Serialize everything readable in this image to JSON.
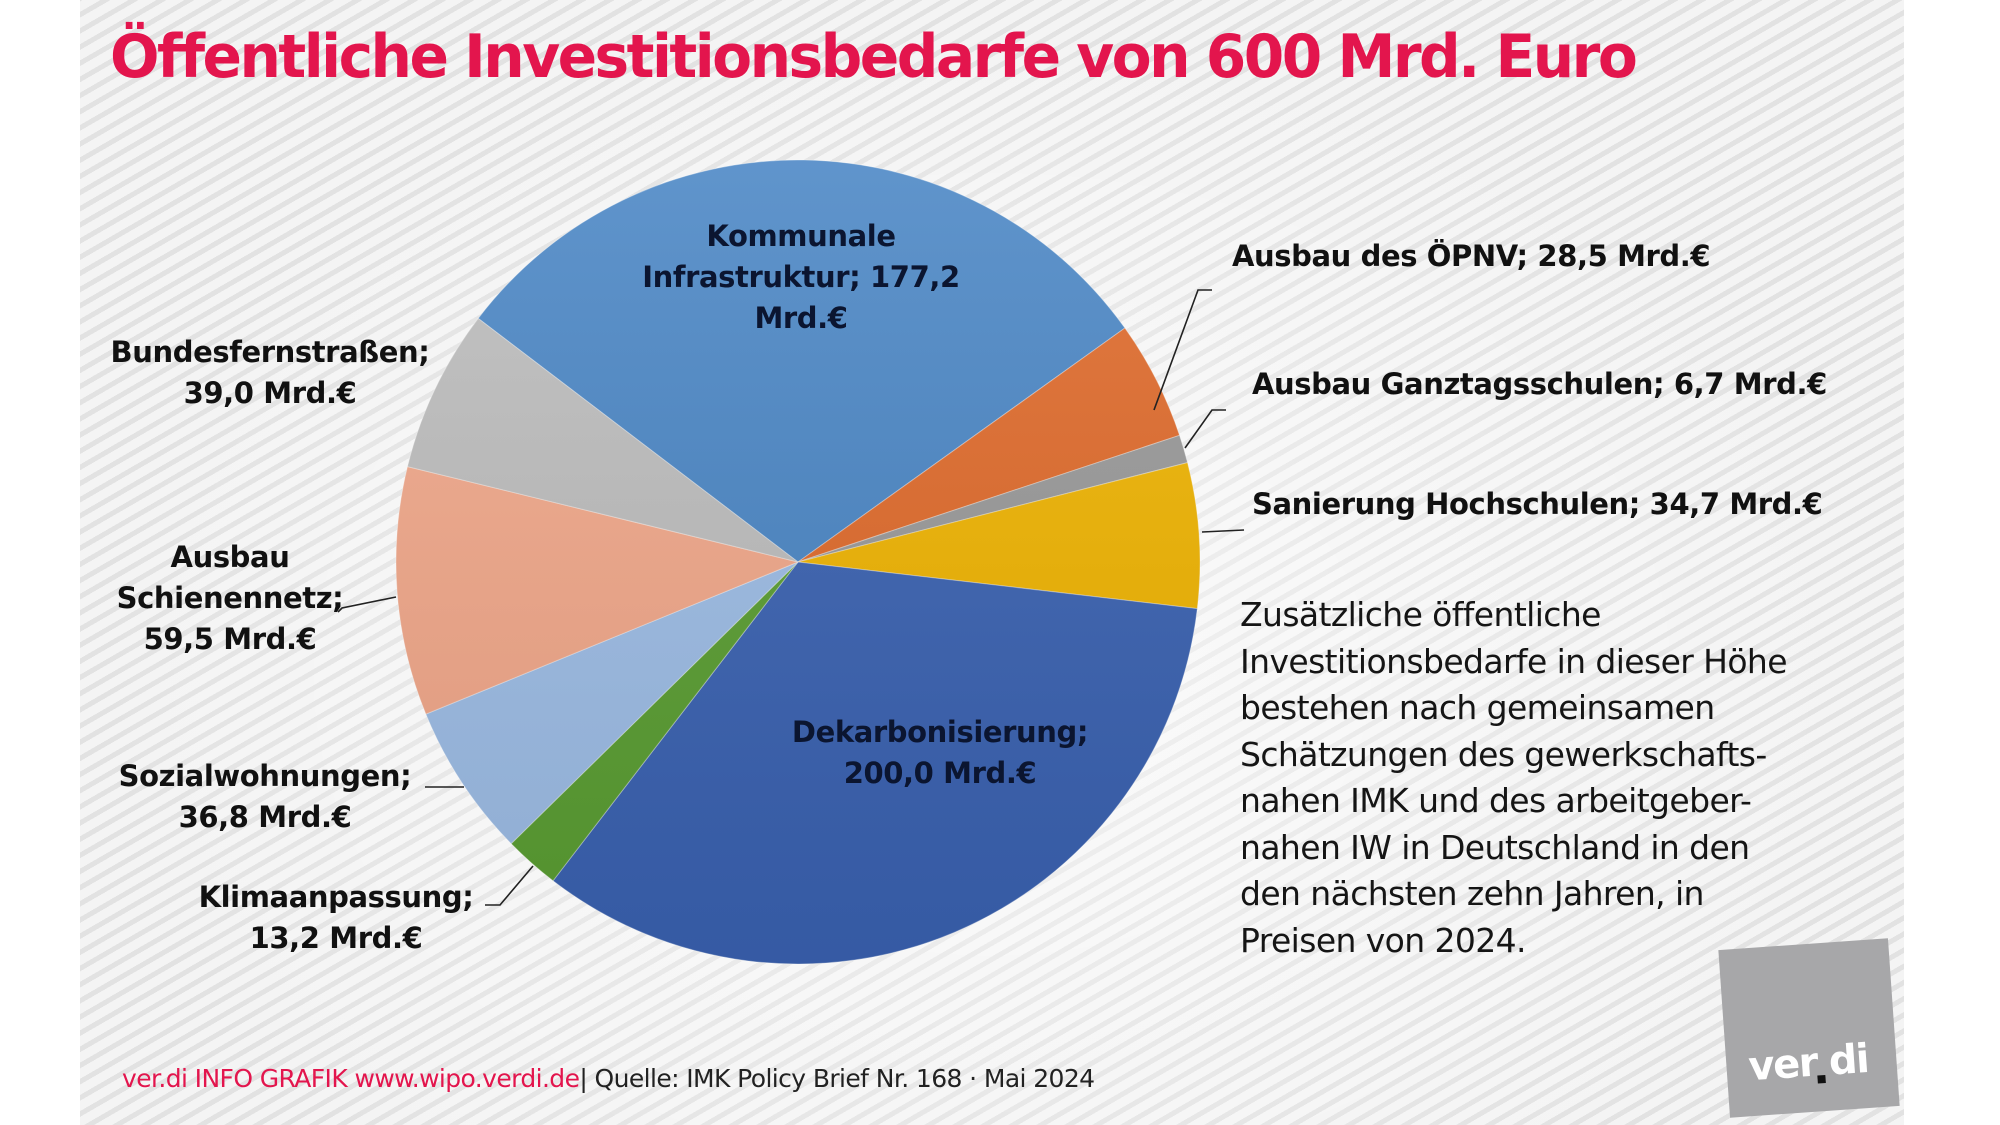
{
  "title": "Öffentliche Investitionsbedarfe von 600 Mrd. Euro",
  "chart_data": {
    "type": "pie",
    "title": "Öffentliche Investitionsbedarfe von 600 Mrd. Euro",
    "unit": "Mrd.€",
    "start_angle_deg": 217.3,
    "direction": "clockwise",
    "slices": [
      {
        "label": "Kommunale Infrastruktur",
        "value": 177.2,
        "display": "Kommunale Infrastruktur; 177,2 Mrd.€",
        "color": "#4a86c5"
      },
      {
        "label": "Ausbau des ÖPNV",
        "value": 28.5,
        "display": "Ausbau des ÖPNV; 28,5 Mrd.€",
        "color": "#e06a2a"
      },
      {
        "label": "Ausbau Ganztagsschulen",
        "value": 6.7,
        "display": "Ausbau Ganztagsschulen; 6,7 Mrd.€",
        "color": "#999999"
      },
      {
        "label": "Sanierung Hochschulen",
        "value": 34.7,
        "display": "Sanierung Hochschulen; 34,7 Mrd.€",
        "color": "#f0b400"
      },
      {
        "label": "Dekarbonisierung",
        "value": 200.0,
        "display": "Dekarbonisierung; 200,0 Mrd.€",
        "color": "#3a62b2"
      },
      {
        "label": "Klimaanpassung",
        "value": 13.2,
        "display": "Klimaanpassung; 13,2 Mrd.€",
        "color": "#5a9e32"
      },
      {
        "label": "Sozialwohnungen",
        "value": 36.8,
        "display": "Sozialwohnungen; 36,8 Mrd.€",
        "color": "#9dbde6"
      },
      {
        "label": "Ausbau Schienennetz",
        "value": 59.5,
        "display": "Ausbau Schienennetz; 59,5 Mrd.€",
        "color": "#f2a88a"
      },
      {
        "label": "Bundesfernstraßen",
        "value": 39.0,
        "display": "Bundesfernstraßen; 39,0 Mrd.€",
        "color": "#bdbdbd"
      }
    ]
  },
  "labels": {
    "kommunale": [
      "Kommunale",
      "Infrastruktur; 177,2",
      "Mrd.€"
    ],
    "oepnv": "Ausbau des ÖPNV; 28,5 Mrd.€",
    "ganztag": "Ausbau Ganztagsschulen; 6,7 Mrd.€",
    "hochschulen": "Sanierung Hochschulen; 34,7 Mrd.€",
    "dekarbonisierung": [
      "Dekarbonisierung;",
      "200,0 Mrd.€"
    ],
    "klima": [
      "Klimaanpassung;",
      "13,2 Mrd.€"
    ],
    "sozial": [
      "Sozialwohnungen;",
      "36,8 Mrd.€"
    ],
    "schienen": [
      "Ausbau",
      "Schienennetz;",
      "59,5 Mrd.€"
    ],
    "bundesfern": [
      "Bundesfernstraßen;",
      "39,0 Mrd.€"
    ]
  },
  "description": [
    "Zusätzliche öffentliche",
    "Investitionsbedarfe in dieser Höhe",
    "bestehen nach gemeinsamen",
    "Schätzungen des gewerkschafts-",
    "nahen IMK und des arbeitgeber-",
    "nahen IW in Deutschland in den",
    "den nächsten zehn Jahren, in",
    "Preisen von 2024."
  ],
  "footer": {
    "brand": "ver.di INFO GRAFIK www.wipo.verdi.de",
    "source": "| Quelle: IMK Policy Brief Nr. 168 · Mai 2024"
  },
  "logo": {
    "word_left": "ver",
    "word_right": "di"
  }
}
